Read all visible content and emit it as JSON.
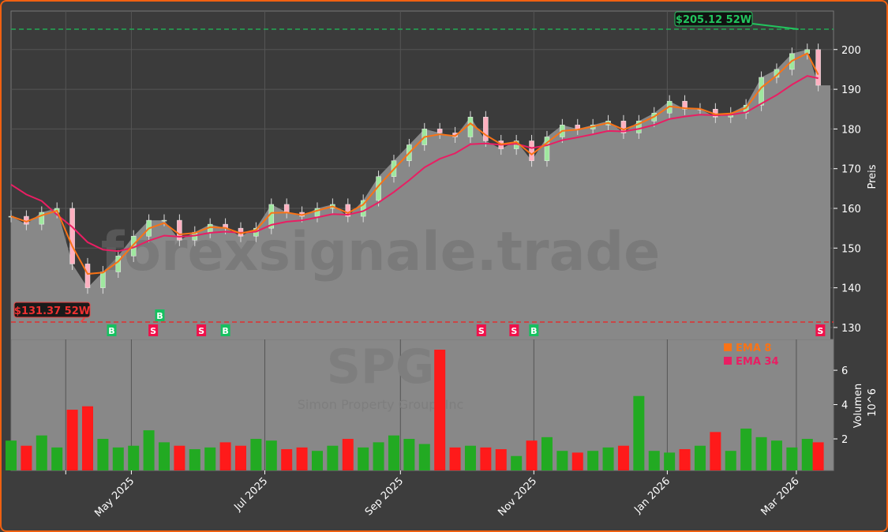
{
  "chart_data": {
    "type": "candlestick",
    "ticker_watermark": "SPG",
    "company_watermark": "Simon Property Group, Inc",
    "site_watermark": "forexsignale.trade",
    "ylabel": "Preis",
    "volume_label": "Volumen",
    "volume_unit": "10^6",
    "ylim": [
      127,
      209.7
    ],
    "yticks": [
      130,
      140,
      150,
      160,
      170,
      180,
      190,
      200
    ],
    "volume_ylim": [
      0.16,
      7.8
    ],
    "volume_yticks": [
      2,
      4,
      6
    ],
    "xticks": [
      {
        "date": "2025-04-01",
        "label": ""
      },
      {
        "date": "2025-05-01",
        "label": "May 2025"
      },
      {
        "date": "2025-07-01",
        "label": "Jul 2025"
      },
      {
        "date": "2025-09-01",
        "label": "Sep 2025"
      },
      {
        "date": "2025-11-01",
        "label": "Nov 2025"
      },
      {
        "date": "2026-01-01",
        "label": "Jan 2026"
      },
      {
        "date": "2026-03-01",
        "label": "Mar 2026"
      }
    ],
    "x_start": "2025-03-07",
    "x_end": "2026-03-18",
    "high_52w": {
      "value": 205.12,
      "label": "$205.12 52W",
      "date": "2026-03-02",
      "color": "#22c55e"
    },
    "low_52w": {
      "value": 131.37,
      "label": "$131.37 52W",
      "date": "2025-04-08",
      "color": "#ef4444"
    },
    "legend": [
      {
        "name": "EMA 8",
        "color": "#f97316"
      },
      {
        "name": "EMA 34",
        "color": "#e91e63"
      }
    ],
    "legend_position": "top-right of volume panel",
    "grid": true,
    "colors": {
      "up": "#22aa22",
      "down": "#ff1a1a",
      "area": "#888888",
      "buy": "#16c060",
      "sell": "#f0104a"
    },
    "dates": [
      "2025-03-07",
      "2025-03-14",
      "2025-03-21",
      "2025-03-28",
      "2025-04-04",
      "2025-04-11",
      "2025-04-18",
      "2025-04-25",
      "2025-05-02",
      "2025-05-09",
      "2025-05-16",
      "2025-05-23",
      "2025-05-30",
      "2025-06-06",
      "2025-06-13",
      "2025-06-20",
      "2025-06-27",
      "2025-07-04",
      "2025-07-11",
      "2025-07-18",
      "2025-07-25",
      "2025-08-01",
      "2025-08-08",
      "2025-08-15",
      "2025-08-22",
      "2025-08-29",
      "2025-09-05",
      "2025-09-12",
      "2025-09-19",
      "2025-09-26",
      "2025-10-03",
      "2025-10-10",
      "2025-10-17",
      "2025-10-24",
      "2025-10-31",
      "2025-11-07",
      "2025-11-14",
      "2025-11-21",
      "2025-11-28",
      "2025-12-05",
      "2025-12-12",
      "2025-12-19",
      "2025-12-26",
      "2026-01-02",
      "2026-01-09",
      "2026-01-16",
      "2026-01-23",
      "2026-01-30",
      "2026-02-06",
      "2026-02-13",
      "2026-02-20",
      "2026-02-27",
      "2026-03-06",
      "2026-03-11"
    ],
    "close": [
      158,
      156,
      159,
      160,
      146,
      140,
      144,
      148,
      153,
      157,
      157,
      152,
      154,
      156,
      155,
      153,
      155,
      161,
      159,
      158,
      160,
      161,
      158,
      162,
      168,
      172,
      176,
      180,
      179,
      178,
      183,
      177,
      175,
      177,
      172,
      178,
      181,
      180,
      181,
      182,
      179,
      182,
      184,
      187,
      185,
      185,
      183,
      184,
      186,
      193,
      195,
      199,
      200,
      191
    ],
    "volume": [
      1.9,
      1.6,
      2.2,
      1.5,
      3.7,
      3.9,
      2.0,
      1.5,
      1.6,
      2.5,
      1.8,
      1.6,
      1.4,
      1.5,
      1.8,
      1.6,
      2.0,
      1.9,
      1.4,
      1.5,
      1.3,
      1.6,
      2.0,
      1.5,
      1.8,
      2.2,
      2.0,
      1.7,
      7.2,
      1.5,
      1.6,
      1.5,
      1.4,
      1.0,
      1.9,
      2.1,
      1.3,
      1.2,
      1.3,
      1.5,
      1.6,
      4.5,
      1.3,
      1.2,
      1.4,
      1.6,
      2.4,
      1.3,
      2.6,
      2.1,
      1.9,
      1.5,
      2.0,
      1.8
    ],
    "signals": [
      {
        "date": "2025-04-22",
        "type": "B"
      },
      {
        "date": "2025-05-11",
        "type": "S"
      },
      {
        "date": "2025-05-14",
        "type": "B"
      },
      {
        "date": "2025-06-02",
        "type": "S"
      },
      {
        "date": "2025-06-13",
        "type": "B"
      },
      {
        "date": "2025-10-08",
        "type": "S"
      },
      {
        "date": "2025-10-23",
        "type": "S"
      },
      {
        "date": "2025-11-01",
        "type": "B"
      },
      {
        "date": "2026-03-12",
        "type": "S"
      }
    ]
  }
}
